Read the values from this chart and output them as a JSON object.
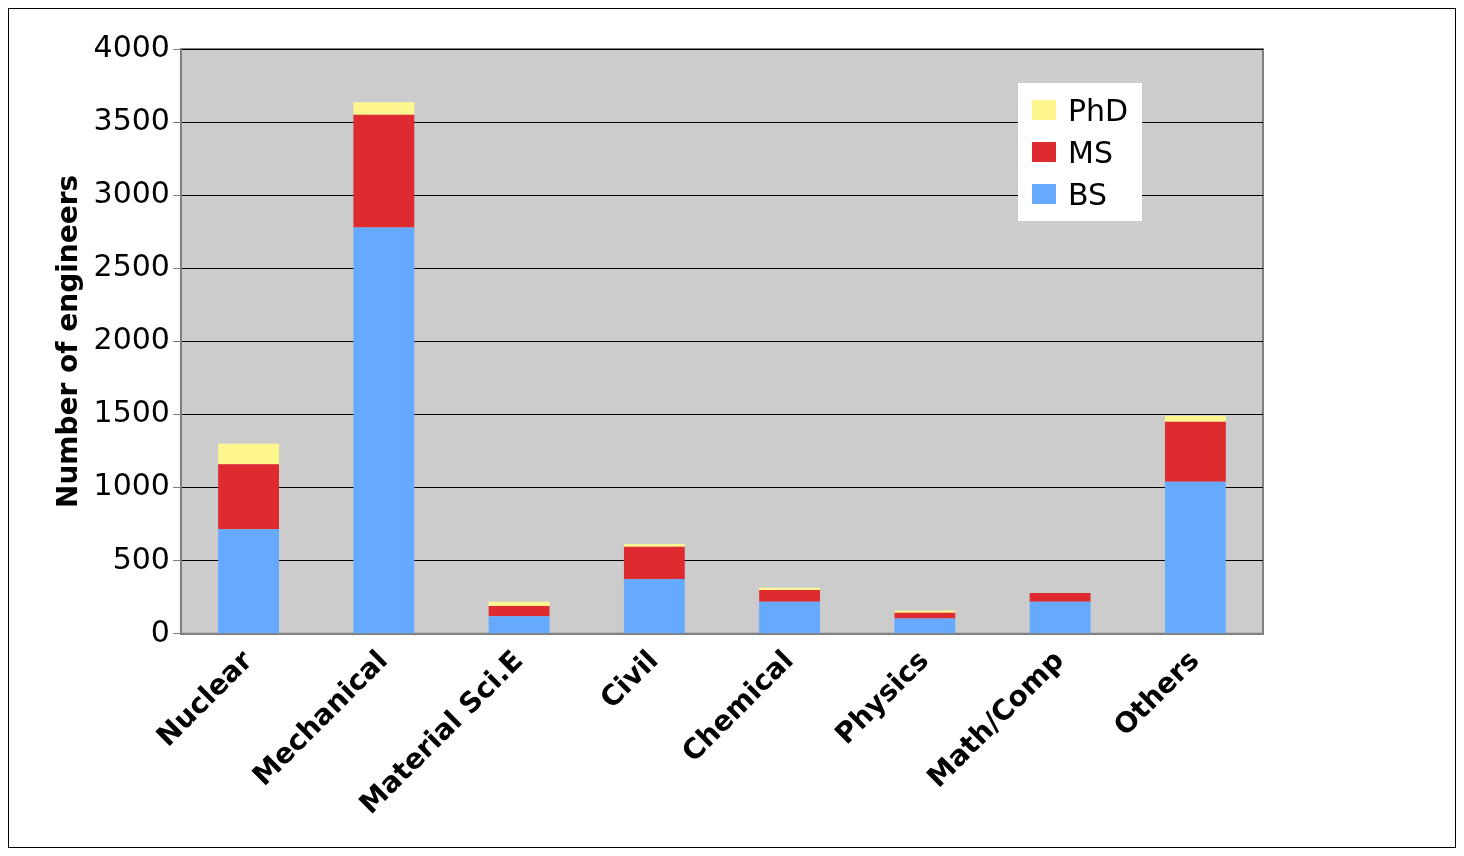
{
  "chart_data": {
    "type": "bar",
    "stacked": true,
    "ylabel": "Number of engineers",
    "categories": [
      "Nuclear",
      "Mechanical",
      "Material Sci.E",
      "Civil",
      "Chemical",
      "Physics",
      "Math/Comp",
      "Others"
    ],
    "series": [
      {
        "name": "BS",
        "color": "#66aaff",
        "values": [
          715,
          2780,
          120,
          375,
          220,
          105,
          220,
          1040
        ]
      },
      {
        "name": "MS",
        "color": "#dd2b30",
        "values": [
          445,
          770,
          70,
          220,
          80,
          40,
          60,
          410
        ]
      },
      {
        "name": "PhD",
        "color": "#fff68f",
        "values": [
          140,
          85,
          30,
          20,
          15,
          15,
          0,
          40
        ]
      }
    ],
    "ylim": [
      0,
      4000
    ],
    "yticks": [
      0,
      500,
      1000,
      1500,
      2000,
      2500,
      3000,
      3500,
      4000
    ],
    "grid": "y",
    "legend": "top right"
  }
}
